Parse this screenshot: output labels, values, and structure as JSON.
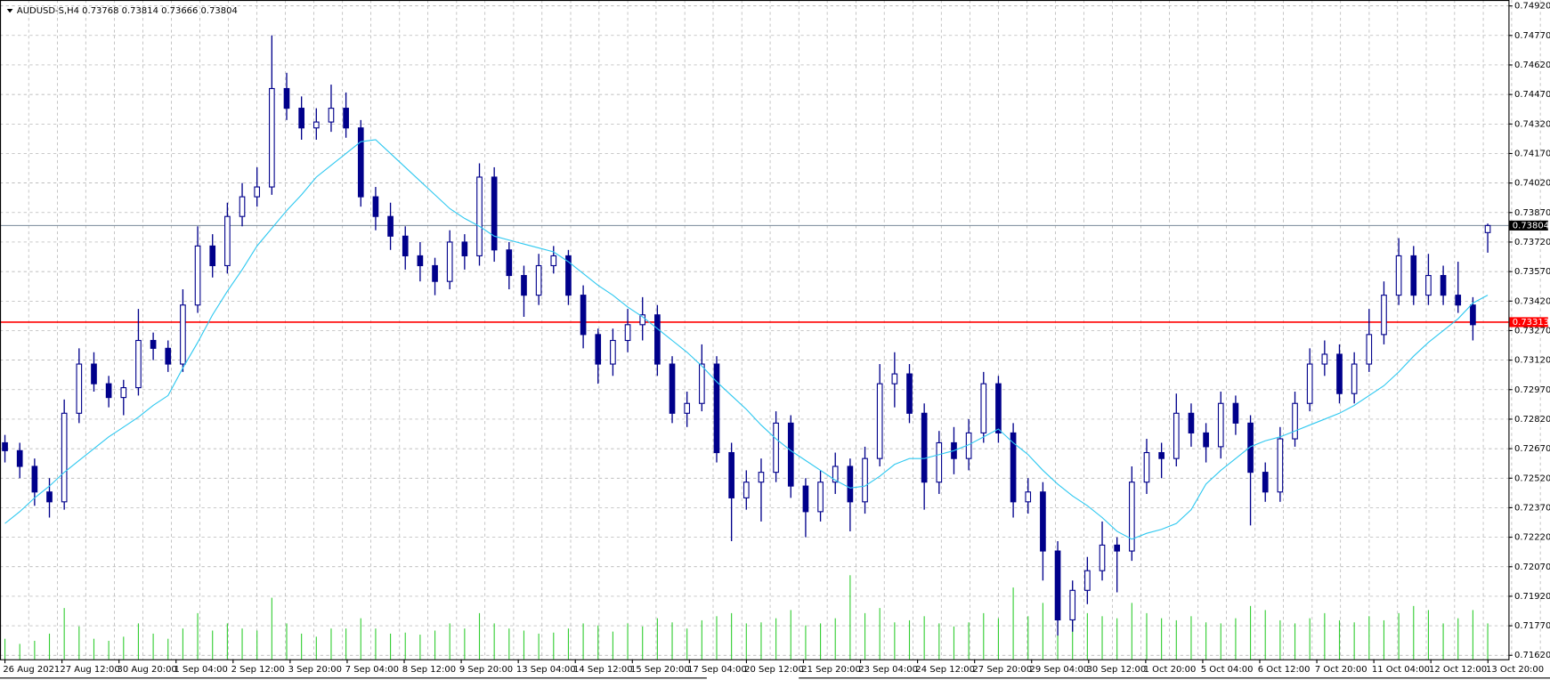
{
  "chart_data": {
    "type": "candlestick",
    "title": "AUDUSD-S,H4  0.73768 0.73814 0.73666 0.73804",
    "x_labels": [
      "26 Aug 2021",
      "27 Aug 12:00",
      "30 Aug 20:00",
      "1 Sep 04:00",
      "2 Sep 12:00",
      "3 Sep 20:00",
      "7 Sep 04:00",
      "8 Sep 12:00",
      "9 Sep 20:00",
      "13 Sep 04:00",
      "14 Sep 12:00",
      "15 Sep 20:00",
      "17 Sep 04:00",
      "20 Sep 12:00",
      "21 Sep 20:00",
      "23 Sep 04:00",
      "24 Sep 12:00",
      "27 Sep 20:00",
      "29 Sep 04:00",
      "30 Sep 12:00",
      "1 Oct 20:00",
      "5 Oct 04:00",
      "6 Oct 12:00",
      "7 Oct 20:00",
      "11 Oct 04:00",
      "12 Oct 12:00",
      "13 Oct 20:00"
    ],
    "ohlc": [
      [
        0.727,
        0.7274,
        0.726,
        0.7266
      ],
      [
        0.7266,
        0.727,
        0.7252,
        0.7258
      ],
      [
        0.7258,
        0.7262,
        0.7238,
        0.7245
      ],
      [
        0.7245,
        0.7252,
        0.7232,
        0.724
      ],
      [
        0.724,
        0.7292,
        0.7236,
        0.7285
      ],
      [
        0.7285,
        0.7318,
        0.728,
        0.731
      ],
      [
        0.731,
        0.7316,
        0.7296,
        0.73
      ],
      [
        0.73,
        0.7304,
        0.7288,
        0.7293
      ],
      [
        0.7293,
        0.7302,
        0.7284,
        0.7298
      ],
      [
        0.7298,
        0.7338,
        0.7294,
        0.7322
      ],
      [
        0.7322,
        0.7326,
        0.7312,
        0.7318
      ],
      [
        0.7318,
        0.7322,
        0.7306,
        0.731
      ],
      [
        0.731,
        0.7348,
        0.7306,
        0.734
      ],
      [
        0.734,
        0.738,
        0.7336,
        0.737
      ],
      [
        0.737,
        0.7376,
        0.7354,
        0.736
      ],
      [
        0.736,
        0.7392,
        0.7356,
        0.7385
      ],
      [
        0.7385,
        0.7402,
        0.738,
        0.7395
      ],
      [
        0.7395,
        0.741,
        0.739,
        0.74
      ],
      [
        0.74,
        0.7477,
        0.7396,
        0.745
      ],
      [
        0.745,
        0.7458,
        0.7434,
        0.744
      ],
      [
        0.744,
        0.7446,
        0.7424,
        0.743
      ],
      [
        0.743,
        0.744,
        0.7424,
        0.7433
      ],
      [
        0.7433,
        0.7452,
        0.7428,
        0.744
      ],
      [
        0.744,
        0.7448,
        0.7425,
        0.743
      ],
      [
        0.743,
        0.7434,
        0.739,
        0.7395
      ],
      [
        0.7395,
        0.74,
        0.7378,
        0.7385
      ],
      [
        0.7385,
        0.7392,
        0.7368,
        0.7375
      ],
      [
        0.7375,
        0.738,
        0.7358,
        0.7365
      ],
      [
        0.7365,
        0.7372,
        0.7352,
        0.736
      ],
      [
        0.736,
        0.7364,
        0.7345,
        0.7352
      ],
      [
        0.7352,
        0.7378,
        0.7348,
        0.7372
      ],
      [
        0.7372,
        0.7376,
        0.7358,
        0.7365
      ],
      [
        0.7365,
        0.7412,
        0.736,
        0.7405
      ],
      [
        0.7405,
        0.741,
        0.7362,
        0.7368
      ],
      [
        0.7368,
        0.7372,
        0.7348,
        0.7355
      ],
      [
        0.7355,
        0.736,
        0.7334,
        0.7345
      ],
      [
        0.7345,
        0.7366,
        0.734,
        0.736
      ],
      [
        0.736,
        0.737,
        0.7356,
        0.7365
      ],
      [
        0.7365,
        0.7368,
        0.734,
        0.7345
      ],
      [
        0.7345,
        0.735,
        0.7318,
        0.7325
      ],
      [
        0.7325,
        0.7328,
        0.73,
        0.731
      ],
      [
        0.731,
        0.7328,
        0.7304,
        0.7322
      ],
      [
        0.7322,
        0.7338,
        0.7316,
        0.733
      ],
      [
        0.733,
        0.7344,
        0.7322,
        0.7335
      ],
      [
        0.7335,
        0.734,
        0.7304,
        0.731
      ],
      [
        0.731,
        0.7314,
        0.728,
        0.7285
      ],
      [
        0.7285,
        0.7296,
        0.7278,
        0.729
      ],
      [
        0.729,
        0.732,
        0.7286,
        0.731
      ],
      [
        0.731,
        0.7314,
        0.726,
        0.7265
      ],
      [
        0.7265,
        0.727,
        0.722,
        0.7242
      ],
      [
        0.7242,
        0.7256,
        0.7236,
        0.725
      ],
      [
        0.725,
        0.7262,
        0.723,
        0.7255
      ],
      [
        0.7255,
        0.7286,
        0.725,
        0.728
      ],
      [
        0.728,
        0.7284,
        0.7242,
        0.7248
      ],
      [
        0.7248,
        0.7252,
        0.7222,
        0.7235
      ],
      [
        0.7235,
        0.7256,
        0.723,
        0.725
      ],
      [
        0.725,
        0.7265,
        0.7244,
        0.7258
      ],
      [
        0.7258,
        0.7262,
        0.7225,
        0.724
      ],
      [
        0.724,
        0.7268,
        0.7234,
        0.7262
      ],
      [
        0.7262,
        0.731,
        0.7258,
        0.73
      ],
      [
        0.73,
        0.7316,
        0.7288,
        0.7305
      ],
      [
        0.7305,
        0.731,
        0.728,
        0.7285
      ],
      [
        0.7285,
        0.729,
        0.7236,
        0.725
      ],
      [
        0.725,
        0.7276,
        0.7244,
        0.727
      ],
      [
        0.727,
        0.7278,
        0.7254,
        0.7262
      ],
      [
        0.7262,
        0.7282,
        0.7256,
        0.7275
      ],
      [
        0.7275,
        0.7306,
        0.727,
        0.73
      ],
      [
        0.73,
        0.7304,
        0.727,
        0.7275
      ],
      [
        0.7275,
        0.728,
        0.7232,
        0.724
      ],
      [
        0.724,
        0.7252,
        0.7234,
        0.7245
      ],
      [
        0.7245,
        0.725,
        0.72,
        0.7215
      ],
      [
        0.7215,
        0.722,
        0.7172,
        0.718
      ],
      [
        0.718,
        0.72,
        0.7174,
        0.7195
      ],
      [
        0.7195,
        0.7212,
        0.7188,
        0.7205
      ],
      [
        0.7205,
        0.723,
        0.72,
        0.7218
      ],
      [
        0.7218,
        0.7222,
        0.7194,
        0.7215
      ],
      [
        0.7215,
        0.7258,
        0.721,
        0.725
      ],
      [
        0.725,
        0.7272,
        0.7244,
        0.7265
      ],
      [
        0.7265,
        0.727,
        0.7252,
        0.7262
      ],
      [
        0.7262,
        0.7295,
        0.7258,
        0.7285
      ],
      [
        0.7285,
        0.729,
        0.7268,
        0.7275
      ],
      [
        0.7275,
        0.728,
        0.726,
        0.7268
      ],
      [
        0.7268,
        0.7296,
        0.7262,
        0.729
      ],
      [
        0.729,
        0.7294,
        0.7274,
        0.728
      ],
      [
        0.728,
        0.7284,
        0.7228,
        0.7255
      ],
      [
        0.7255,
        0.726,
        0.724,
        0.7245
      ],
      [
        0.7245,
        0.7278,
        0.724,
        0.7272
      ],
      [
        0.7272,
        0.7296,
        0.7268,
        0.729
      ],
      [
        0.729,
        0.7318,
        0.7286,
        0.731
      ],
      [
        0.731,
        0.7322,
        0.7304,
        0.7315
      ],
      [
        0.7315,
        0.732,
        0.729,
        0.7295
      ],
      [
        0.7295,
        0.7316,
        0.729,
        0.731
      ],
      [
        0.731,
        0.7338,
        0.7306,
        0.7325
      ],
      [
        0.7325,
        0.7352,
        0.732,
        0.7345
      ],
      [
        0.7345,
        0.7374,
        0.734,
        0.7365
      ],
      [
        0.7365,
        0.737,
        0.734,
        0.7345
      ],
      [
        0.7345,
        0.7366,
        0.734,
        0.7355
      ],
      [
        0.7355,
        0.736,
        0.734,
        0.7345
      ],
      [
        0.7345,
        0.7362,
        0.7336,
        0.734
      ],
      [
        0.734,
        0.7344,
        0.7322,
        0.733
      ],
      [
        0.73768,
        0.73814,
        0.73666,
        0.73804
      ]
    ],
    "ma": {
      "color": "#2ec8f0",
      "values": [
        0.7229,
        0.7235,
        0.7242,
        0.7248,
        0.7255,
        0.7261,
        0.7267,
        0.7273,
        0.7278,
        0.7283,
        0.7289,
        0.7294,
        0.7308,
        0.7321,
        0.7335,
        0.7347,
        0.7358,
        0.737,
        0.7379,
        0.7388,
        0.7396,
        0.7405,
        0.7411,
        0.7417,
        0.7423,
        0.7424,
        0.7417,
        0.741,
        0.7403,
        0.7396,
        0.7389,
        0.7384,
        0.738,
        0.7375,
        0.7373,
        0.7371,
        0.7369,
        0.7367,
        0.7362,
        0.7356,
        0.735,
        0.7345,
        0.7339,
        0.7334,
        0.7328,
        0.7322,
        0.7316,
        0.7309,
        0.7301,
        0.7294,
        0.7287,
        0.7279,
        0.7272,
        0.7266,
        0.7261,
        0.7256,
        0.7251,
        0.7247,
        0.7248,
        0.7253,
        0.7259,
        0.7262,
        0.7262,
        0.7264,
        0.7266,
        0.7269,
        0.7273,
        0.7277,
        0.727,
        0.7264,
        0.7256,
        0.7249,
        0.7243,
        0.7238,
        0.7232,
        0.7225,
        0.7221,
        0.7224,
        0.7226,
        0.7229,
        0.7236,
        0.7249,
        0.7256,
        0.7262,
        0.7268,
        0.7271,
        0.7273,
        0.7276,
        0.7279,
        0.7282,
        0.7285,
        0.7289,
        0.7294,
        0.7299,
        0.7306,
        0.7314,
        0.7321,
        0.7327,
        0.7333,
        0.7341,
        0.7345
      ]
    },
    "volume": {
      "color": "#32cd32",
      "values": [
        2000,
        1500,
        1800,
        2500,
        5000,
        3200,
        2000,
        1800,
        2200,
        3500,
        2500,
        2000,
        3000,
        4500,
        2800,
        3500,
        3000,
        2800,
        6000,
        3500,
        2500,
        2200,
        3000,
        3000,
        4000,
        3000,
        2500,
        2600,
        2400,
        2800,
        3500,
        3000,
        4500,
        3500,
        3000,
        2800,
        2500,
        2600,
        3000,
        3500,
        3300,
        2700,
        3500,
        3200,
        4000,
        3600,
        3000,
        3800,
        4200,
        4500,
        3500,
        3600,
        4000,
        4800,
        3300,
        3500,
        4000,
        8200,
        4500,
        5000,
        3600,
        3800,
        4200,
        3500,
        3200,
        3600,
        4500,
        4000,
        7000,
        4200,
        5500,
        6000,
        5000,
        4500,
        4200,
        4000,
        5500,
        4500,
        4000,
        3800,
        4200,
        3600,
        3500,
        4000,
        5200,
        4800,
        3800,
        3500,
        4000,
        4500,
        3800,
        3600,
        4200,
        3800,
        4500,
        5200,
        4800,
        3500,
        4000,
        4800,
        3500
      ]
    },
    "up_color": "#ffffff",
    "down_color": "#00008b",
    "ylim": [
      0.716,
      0.7495
    ],
    "yticks": [
      {
        "value": 0.7162,
        "label": "0.71620"
      },
      {
        "value": 0.7177,
        "label": "0.71770"
      },
      {
        "value": 0.7192,
        "label": "0.71920"
      },
      {
        "value": 0.7207,
        "label": "0.72070"
      },
      {
        "value": 0.7222,
        "label": "0.72220"
      },
      {
        "value": 0.7237,
        "label": "0.72370"
      },
      {
        "value": 0.7252,
        "label": "0.72520"
      },
      {
        "value": 0.7267,
        "label": "0.72670"
      },
      {
        "value": 0.7282,
        "label": "0.72820"
      },
      {
        "value": 0.7297,
        "label": "0.72970"
      },
      {
        "value": 0.7312,
        "label": "0.73120"
      },
      {
        "value": 0.7327,
        "label": "0.73270"
      },
      {
        "value": 0.7342,
        "label": "0.73420"
      },
      {
        "value": 0.7357,
        "label": "0.73570"
      },
      {
        "value": 0.7372,
        "label": "0.73720"
      },
      {
        "value": 0.7387,
        "label": "0.73870"
      },
      {
        "value": 0.7402,
        "label": "0.74020"
      },
      {
        "value": 0.7417,
        "label": "0.74170"
      },
      {
        "value": 0.7432,
        "label": "0.74320"
      },
      {
        "value": 0.7447,
        "label": "0.74470"
      },
      {
        "value": 0.7462,
        "label": "0.74620"
      },
      {
        "value": 0.7477,
        "label": "0.74770"
      },
      {
        "value": 0.7492,
        "label": "0.74920"
      }
    ],
    "grid": true,
    "bid_line": {
      "value": 0.73804,
      "label": "0.73804",
      "color": "#778899"
    },
    "level_line": {
      "value": 0.73313,
      "label": "0.73313",
      "color": "#ff0000"
    }
  }
}
